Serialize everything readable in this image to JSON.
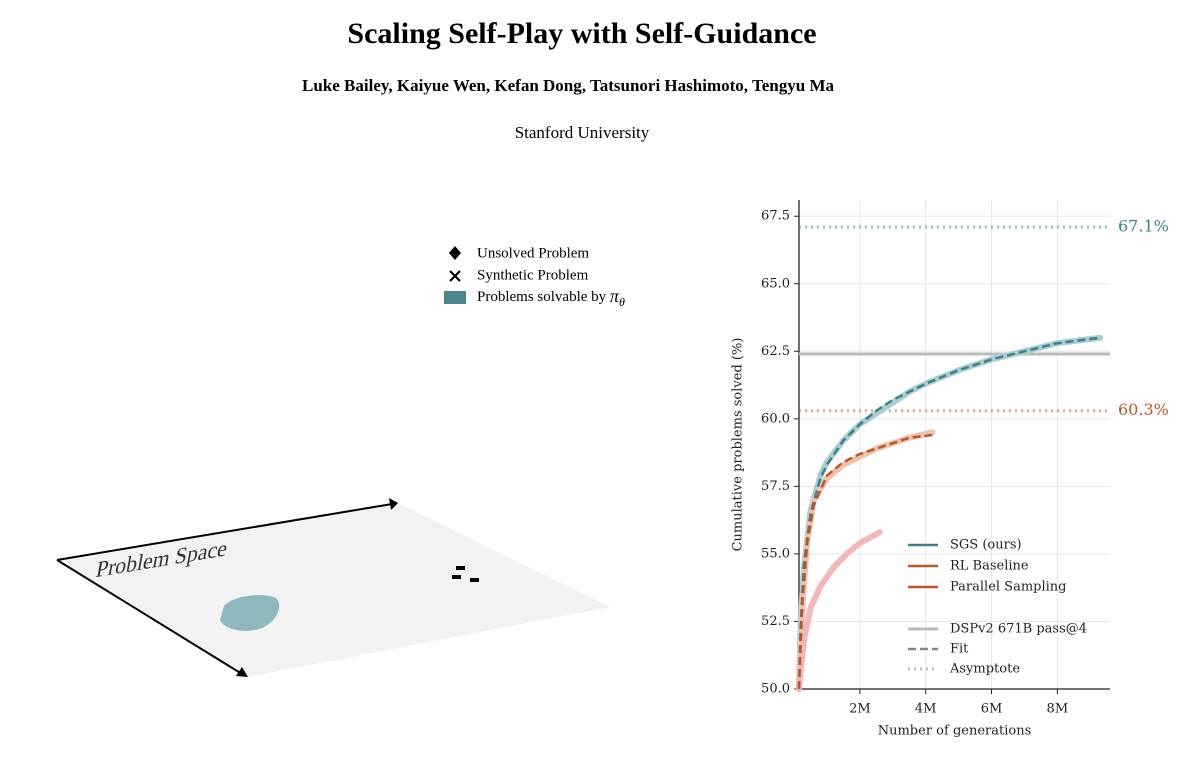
{
  "header": {
    "title": "Scaling Self-Play with Self-Guidance",
    "authors": "Luke Bailey, Kaiyue Wen, Kefan Dong, Tatsunori Hashimoto, Tengyu Ma",
    "affiliation": "Stanford University"
  },
  "diagram": {
    "plane_label": "Problem Space",
    "legend": {
      "unsolved": "Unsolved Problem",
      "synthetic": "Synthetic Problem",
      "solvable": {
        "text": "Problems solvable by",
        "symbol": "π",
        "subscript": "θ"
      }
    }
  },
  "chart_data": {
    "type": "line",
    "xlabel": "Number of generations",
    "ylabel": "Cumulative problems solved (%)",
    "xlim": [
      150000,
      9600000
    ],
    "xticks": [
      {
        "value": 2000000,
        "label": "2M"
      },
      {
        "value": 4000000,
        "label": "4M"
      },
      {
        "value": 6000000,
        "label": "6M"
      },
      {
        "value": 8000000,
        "label": "8M"
      }
    ],
    "ylim": [
      50,
      68.1
    ],
    "yticks": [
      {
        "value": 50,
        "label": "50.0"
      },
      52.5,
      {
        "value": 55,
        "label": "55.0"
      },
      57.5,
      {
        "value": 60,
        "label": "60.0"
      },
      62.5,
      {
        "value": 65,
        "label": "65.0"
      },
      67.5
    ],
    "grid": true,
    "series": [
      {
        "name": "SGS (ours)",
        "color": "#3f7f86",
        "raw_color": "#a8ced3",
        "x": [
          150000,
          200000,
          300000,
          500000,
          800000,
          1000000,
          1500000,
          2000000,
          2500000,
          3000000,
          3500000,
          4000000,
          5000000,
          6000000,
          7000000,
          8000000,
          9300000
        ],
        "values": [
          50,
          52.5,
          54.5,
          56.6,
          57.9,
          58.4,
          59.2,
          59.8,
          60.2,
          60.6,
          61.0,
          61.3,
          61.8,
          62.2,
          62.5,
          62.8,
          63.0
        ],
        "fit": [
          50,
          52.3,
          54.6,
          56.5,
          57.8,
          58.3,
          59.2,
          59.8,
          60.3,
          60.7,
          61.0,
          61.3,
          61.8,
          62.2,
          62.5,
          62.8,
          63.0
        ],
        "asymptote": 67.1,
        "asymptote_label": "67.1%"
      },
      {
        "name": "RL Baseline",
        "color": "#b8572a",
        "raw_color": "#f0c2ad",
        "x": [
          150000,
          250000,
          400000,
          600000,
          1000000,
          1500000,
          2000000,
          2500000,
          3000000,
          3500000,
          4200000
        ],
        "values": [
          50,
          53,
          55.5,
          57,
          57.8,
          58.3,
          58.6,
          58.9,
          59.1,
          59.3,
          59.5
        ],
        "fit": [
          50,
          53.2,
          55.4,
          56.8,
          57.9,
          58.4,
          58.7,
          58.9,
          59.1,
          59.3,
          59.4
        ],
        "asymptote": 60.3,
        "asymptote_label": "60.3%"
      },
      {
        "name": "Parallel Sampling",
        "color": "#b8572a",
        "raw_color": "#f2b8b8",
        "x": [
          150000,
          300000,
          500000,
          800000,
          1200000,
          1600000,
          2000000,
          2300000,
          2600000
        ],
        "values": [
          50,
          51.8,
          53,
          53.8,
          54.5,
          55,
          55.4,
          55.6,
          55.8
        ]
      }
    ],
    "reference": {
      "name": "DSPv2 671B pass@4",
      "value": 62.4,
      "color": "#bbbbbb"
    },
    "style_legend": {
      "fit": "Fit",
      "asymptote": "Asymptote",
      "color": "#888888"
    }
  }
}
